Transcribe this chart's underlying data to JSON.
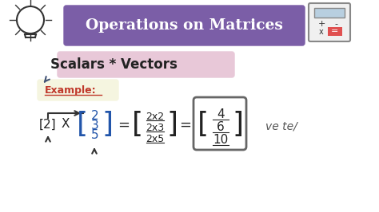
{
  "bg_color": "#ffffff",
  "title_text": "Operations on Matrices",
  "title_bg": "#7B5EA7",
  "title_color": "#ffffff",
  "subtitle_text": "Scalars * Vectors",
  "subtitle_bg": "#e8c8d8",
  "example_label": "Example:",
  "example_label_color": "#c0392b",
  "scalar": "[2]",
  "times": "X",
  "vector": [
    "2",
    "3",
    "5"
  ],
  "equals1": "=",
  "expanded": [
    "2x2",
    "2x3",
    "2x5"
  ],
  "equals2": "=",
  "result": [
    "4",
    "6",
    "10"
  ],
  "note_text": "ve te/",
  "note_color": "#555555",
  "math_color": "#222222",
  "vector_color": "#2255aa",
  "arrow_color": "#333333",
  "calc_screen_color": "#b8cfe0",
  "calc_btn_eq_color": "#e05050"
}
